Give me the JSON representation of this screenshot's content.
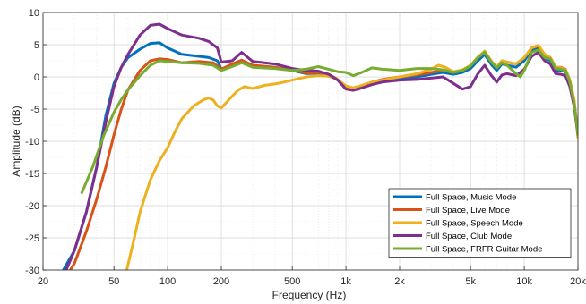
{
  "chart_data": {
    "type": "line",
    "title": "",
    "xlabel": "Frequency (Hz)",
    "ylabel": "Amplitude (dB)",
    "xscale": "log",
    "xlim": [
      20,
      20000
    ],
    "ylim": [
      -30,
      10
    ],
    "x_ticks": [
      20,
      50,
      100,
      200,
      500,
      1000,
      2000,
      5000,
      10000,
      20000
    ],
    "x_tick_labels": [
      "20",
      "50",
      "100",
      "200",
      "500",
      "1k",
      "2k",
      "5k",
      "10k",
      "20k"
    ],
    "y_ticks": [
      10,
      5,
      0,
      -5,
      -10,
      -15,
      -20,
      -25,
      -30
    ],
    "y_tick_labels": [
      "10",
      "5",
      "0",
      "-5",
      "-10",
      "-15",
      "-20",
      "-25",
      "-30"
    ],
    "grid": true,
    "legend_position": "bottom-right",
    "series": [
      {
        "name": "Full Space, Music Mode",
        "color": "#0072BD",
        "points": [
          [
            26,
            -30
          ],
          [
            30,
            -27
          ],
          [
            35,
            -21
          ],
          [
            40,
            -14
          ],
          [
            45,
            -6
          ],
          [
            50,
            -1
          ],
          [
            55,
            1.5
          ],
          [
            60,
            3
          ],
          [
            70,
            4.3
          ],
          [
            80,
            5.2
          ],
          [
            90,
            5.3
          ],
          [
            100,
            4.5
          ],
          [
            120,
            3.5
          ],
          [
            150,
            3.2
          ],
          [
            170,
            3
          ],
          [
            190,
            2.5
          ],
          [
            200,
            1.2
          ],
          [
            230,
            1.8
          ],
          [
            260,
            2.4
          ],
          [
            300,
            1.6
          ],
          [
            400,
            1.4
          ],
          [
            500,
            1
          ],
          [
            600,
            0.5
          ],
          [
            700,
            0.6
          ],
          [
            800,
            0.3
          ],
          [
            900,
            -0.5
          ],
          [
            1000,
            -1.8
          ],
          [
            1100,
            -2
          ],
          [
            1200,
            -1.7
          ],
          [
            1400,
            -1
          ],
          [
            1600,
            -0.6
          ],
          [
            2000,
            -0.3
          ],
          [
            2500,
            0
          ],
          [
            3000,
            0.4
          ],
          [
            3500,
            0.7
          ],
          [
            4000,
            0.4
          ],
          [
            4500,
            0.7
          ],
          [
            5000,
            1.3
          ],
          [
            5500,
            2.5
          ],
          [
            6000,
            3.5
          ],
          [
            6500,
            2
          ],
          [
            7000,
            1
          ],
          [
            7500,
            2
          ],
          [
            8000,
            1.8
          ],
          [
            9000,
            1.5
          ],
          [
            10000,
            2.5
          ],
          [
            11000,
            4.2
          ],
          [
            12000,
            4.5
          ],
          [
            13000,
            3
          ],
          [
            14000,
            2.5
          ],
          [
            15000,
            1
          ],
          [
            16000,
            1
          ],
          [
            17000,
            0.8
          ],
          [
            18000,
            -1
          ],
          [
            19000,
            -4
          ],
          [
            20000,
            -9
          ]
        ]
      },
      {
        "name": "Full Space, Live Mode",
        "color": "#D95319",
        "points": [
          [
            27,
            -31
          ],
          [
            30,
            -29
          ],
          [
            35,
            -24
          ],
          [
            40,
            -19
          ],
          [
            45,
            -14
          ],
          [
            50,
            -9
          ],
          [
            55,
            -5
          ],
          [
            60,
            -2
          ],
          [
            70,
            1
          ],
          [
            80,
            2.5
          ],
          [
            90,
            2.8
          ],
          [
            100,
            2.7
          ],
          [
            120,
            2.2
          ],
          [
            150,
            2.4
          ],
          [
            180,
            2.2
          ],
          [
            200,
            1.2
          ],
          [
            230,
            2
          ],
          [
            260,
            2.6
          ],
          [
            300,
            1.8
          ],
          [
            400,
            1.5
          ],
          [
            500,
            1.1
          ],
          [
            600,
            0.6
          ],
          [
            700,
            0.7
          ],
          [
            800,
            0.4
          ],
          [
            900,
            -0.4
          ],
          [
            1000,
            -1.6
          ],
          [
            1100,
            -1.8
          ],
          [
            1200,
            -1.5
          ],
          [
            1400,
            -0.8
          ],
          [
            1600,
            -0.4
          ],
          [
            2000,
            0
          ],
          [
            2500,
            0.3
          ],
          [
            3000,
            0.7
          ],
          [
            3500,
            1
          ],
          [
            4000,
            0.7
          ],
          [
            4500,
            1
          ],
          [
            5000,
            1.8
          ],
          [
            5500,
            3
          ],
          [
            6000,
            4
          ],
          [
            6500,
            2.5
          ],
          [
            7000,
            1.5
          ],
          [
            7500,
            2.5
          ],
          [
            8000,
            2.3
          ],
          [
            9000,
            2
          ],
          [
            10000,
            3
          ],
          [
            11000,
            4.5
          ],
          [
            12000,
            4.8
          ],
          [
            13000,
            3.5
          ],
          [
            14000,
            3
          ],
          [
            15000,
            1.5
          ],
          [
            16000,
            1.5
          ],
          [
            17000,
            1.2
          ],
          [
            18000,
            -0.5
          ],
          [
            19000,
            -3.5
          ],
          [
            20000,
            -9
          ]
        ]
      },
      {
        "name": "Full Space, Speech Mode",
        "color": "#EDB120",
        "points": [
          [
            59,
            -30
          ],
          [
            65,
            -25
          ],
          [
            70,
            -21
          ],
          [
            80,
            -16
          ],
          [
            90,
            -13
          ],
          [
            100,
            -11
          ],
          [
            110,
            -8.5
          ],
          [
            120,
            -6.5
          ],
          [
            140,
            -4.5
          ],
          [
            160,
            -3.5
          ],
          [
            170,
            -3.3
          ],
          [
            180,
            -3.6
          ],
          [
            190,
            -4.5
          ],
          [
            200,
            -4.8
          ],
          [
            210,
            -4.2
          ],
          [
            230,
            -3
          ],
          [
            250,
            -2
          ],
          [
            270,
            -1.5
          ],
          [
            300,
            -1.8
          ],
          [
            350,
            -1.3
          ],
          [
            400,
            -1.1
          ],
          [
            450,
            -0.8
          ],
          [
            500,
            -0.5
          ],
          [
            600,
            0
          ],
          [
            700,
            0.2
          ],
          [
            800,
            0.1
          ],
          [
            900,
            -0.4
          ],
          [
            1000,
            -1.4
          ],
          [
            1100,
            -1.7
          ],
          [
            1200,
            -1.4
          ],
          [
            1400,
            -0.8
          ],
          [
            1600,
            -0.5
          ],
          [
            2000,
            0
          ],
          [
            2500,
            0.5
          ],
          [
            3000,
            1.2
          ],
          [
            3300,
            1.8
          ],
          [
            3600,
            1.5
          ],
          [
            4000,
            0.8
          ],
          [
            4500,
            1.1
          ],
          [
            5000,
            1.8
          ],
          [
            5500,
            3.1
          ],
          [
            6000,
            4
          ],
          [
            6500,
            2.5
          ],
          [
            7000,
            1.5
          ],
          [
            7500,
            2.5
          ],
          [
            8000,
            2.3
          ],
          [
            9000,
            2
          ],
          [
            10000,
            3
          ],
          [
            11000,
            4.5
          ],
          [
            12000,
            4.9
          ],
          [
            13000,
            3.5
          ],
          [
            14000,
            3
          ],
          [
            15000,
            1.5
          ],
          [
            16000,
            1.4
          ],
          [
            17000,
            1.1
          ],
          [
            18000,
            -0.6
          ],
          [
            19000,
            -3.5
          ],
          [
            20000,
            -9.5
          ]
        ]
      },
      {
        "name": "Full Space, Club Mode",
        "color": "#7E2F8E",
        "points": [
          [
            27,
            -30
          ],
          [
            30,
            -27
          ],
          [
            35,
            -21
          ],
          [
            40,
            -14
          ],
          [
            45,
            -7
          ],
          [
            50,
            -1.5
          ],
          [
            55,
            1.5
          ],
          [
            60,
            3.5
          ],
          [
            70,
            6.5
          ],
          [
            80,
            8
          ],
          [
            90,
            8.2
          ],
          [
            100,
            7.5
          ],
          [
            120,
            6.5
          ],
          [
            150,
            6
          ],
          [
            170,
            5.5
          ],
          [
            190,
            4.5
          ],
          [
            200,
            2.3
          ],
          [
            230,
            2.5
          ],
          [
            260,
            3.8
          ],
          [
            300,
            2.4
          ],
          [
            400,
            2
          ],
          [
            500,
            1.3
          ],
          [
            600,
            1
          ],
          [
            700,
            0.9
          ],
          [
            800,
            0.4
          ],
          [
            900,
            -0.5
          ],
          [
            1000,
            -1.9
          ],
          [
            1100,
            -2.1
          ],
          [
            1200,
            -1.8
          ],
          [
            1400,
            -1.2
          ],
          [
            1600,
            -0.8
          ],
          [
            2000,
            -0.5
          ],
          [
            2500,
            -0.4
          ],
          [
            3000,
            -0.2
          ],
          [
            3500,
            0
          ],
          [
            4000,
            -1
          ],
          [
            4500,
            -1.9
          ],
          [
            5000,
            -1.5
          ],
          [
            5500,
            0.5
          ],
          [
            6000,
            1.8
          ],
          [
            6500,
            0.3
          ],
          [
            7000,
            -0.8
          ],
          [
            7500,
            0.3
          ],
          [
            8000,
            0.5
          ],
          [
            9000,
            0.2
          ],
          [
            10000,
            1.2
          ],
          [
            11000,
            3.2
          ],
          [
            12000,
            3.8
          ],
          [
            13000,
            2.5
          ],
          [
            14000,
            2
          ],
          [
            15000,
            0.5
          ],
          [
            16000,
            0.4
          ],
          [
            17000,
            0.2
          ],
          [
            18000,
            -1.5
          ],
          [
            19000,
            -4.5
          ],
          [
            20000,
            -9
          ]
        ]
      },
      {
        "name": "Full Space, FRFR Guitar Mode",
        "color": "#77AC30",
        "points": [
          [
            33,
            -18
          ],
          [
            38,
            -14
          ],
          [
            44,
            -9
          ],
          [
            50,
            -5.5
          ],
          [
            55,
            -3.5
          ],
          [
            60,
            -2
          ],
          [
            70,
            0.2
          ],
          [
            80,
            1.8
          ],
          [
            90,
            2.5
          ],
          [
            100,
            2.4
          ],
          [
            120,
            2.2
          ],
          [
            150,
            2.1
          ],
          [
            180,
            1.8
          ],
          [
            200,
            1
          ],
          [
            230,
            1.6
          ],
          [
            260,
            2.2
          ],
          [
            300,
            1.5
          ],
          [
            400,
            1.3
          ],
          [
            500,
            1
          ],
          [
            600,
            1.2
          ],
          [
            700,
            1.6
          ],
          [
            800,
            1.2
          ],
          [
            900,
            0.8
          ],
          [
            1000,
            0.7
          ],
          [
            1100,
            0.2
          ],
          [
            1200,
            0.6
          ],
          [
            1300,
            1
          ],
          [
            1400,
            1.4
          ],
          [
            1600,
            1.2
          ],
          [
            2000,
            1
          ],
          [
            2500,
            1.3
          ],
          [
            3000,
            1.3
          ],
          [
            3500,
            1.1
          ],
          [
            4000,
            0.7
          ],
          [
            4500,
            1
          ],
          [
            5000,
            1.7
          ],
          [
            5500,
            3
          ],
          [
            6000,
            3.8
          ],
          [
            6500,
            2.4
          ],
          [
            7000,
            1.4
          ],
          [
            7500,
            2.2
          ],
          [
            8000,
            1.8
          ],
          [
            9000,
            0.5
          ],
          [
            9500,
            0
          ],
          [
            10000,
            1
          ],
          [
            11000,
            3.8
          ],
          [
            12000,
            4.2
          ],
          [
            13000,
            3
          ],
          [
            14000,
            2.8
          ],
          [
            15000,
            1.3
          ],
          [
            16000,
            1.2
          ],
          [
            17000,
            1
          ],
          [
            18000,
            -0.8
          ],
          [
            19000,
            -4
          ],
          [
            20000,
            -9
          ]
        ]
      }
    ]
  }
}
